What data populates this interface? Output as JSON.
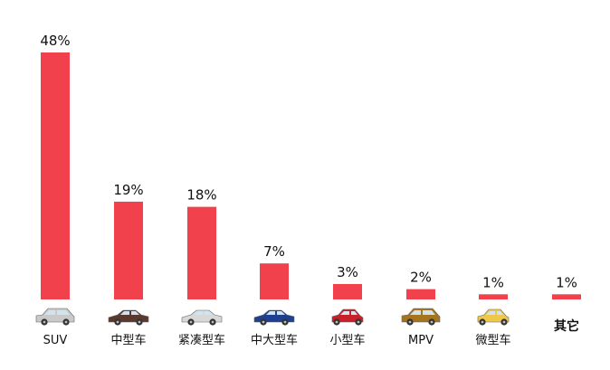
{
  "chart_data": {
    "type": "bar",
    "categories": [
      "SUV",
      "中型车",
      "紧凑型车",
      "中大型车",
      "小型车",
      "MPV",
      "微型车",
      "其它"
    ],
    "values": [
      48,
      19,
      18,
      7,
      3,
      2,
      1,
      1
    ],
    "value_labels": [
      "48%",
      "19%",
      "18%",
      "7%",
      "3%",
      "2%",
      "1%",
      "1%"
    ],
    "unit": "%",
    "ylim": [
      0,
      50
    ],
    "grid": false,
    "legend": "none",
    "bar_color": "#f0414c"
  },
  "category_icons": [
    {
      "name": "suv-icon",
      "color": "#c9c9c9"
    },
    {
      "name": "midsize-sedan-icon",
      "color": "#5a3a2e"
    },
    {
      "name": "compact-sedan-icon",
      "color": "#d8d8d8"
    },
    {
      "name": "large-sedan-icon",
      "color": "#1f3f8f"
    },
    {
      "name": "small-car-icon",
      "color": "#c8202a"
    },
    {
      "name": "mpv-icon",
      "color": "#a4741f"
    },
    {
      "name": "mini-car-icon",
      "color": "#efc84a"
    },
    null
  ]
}
